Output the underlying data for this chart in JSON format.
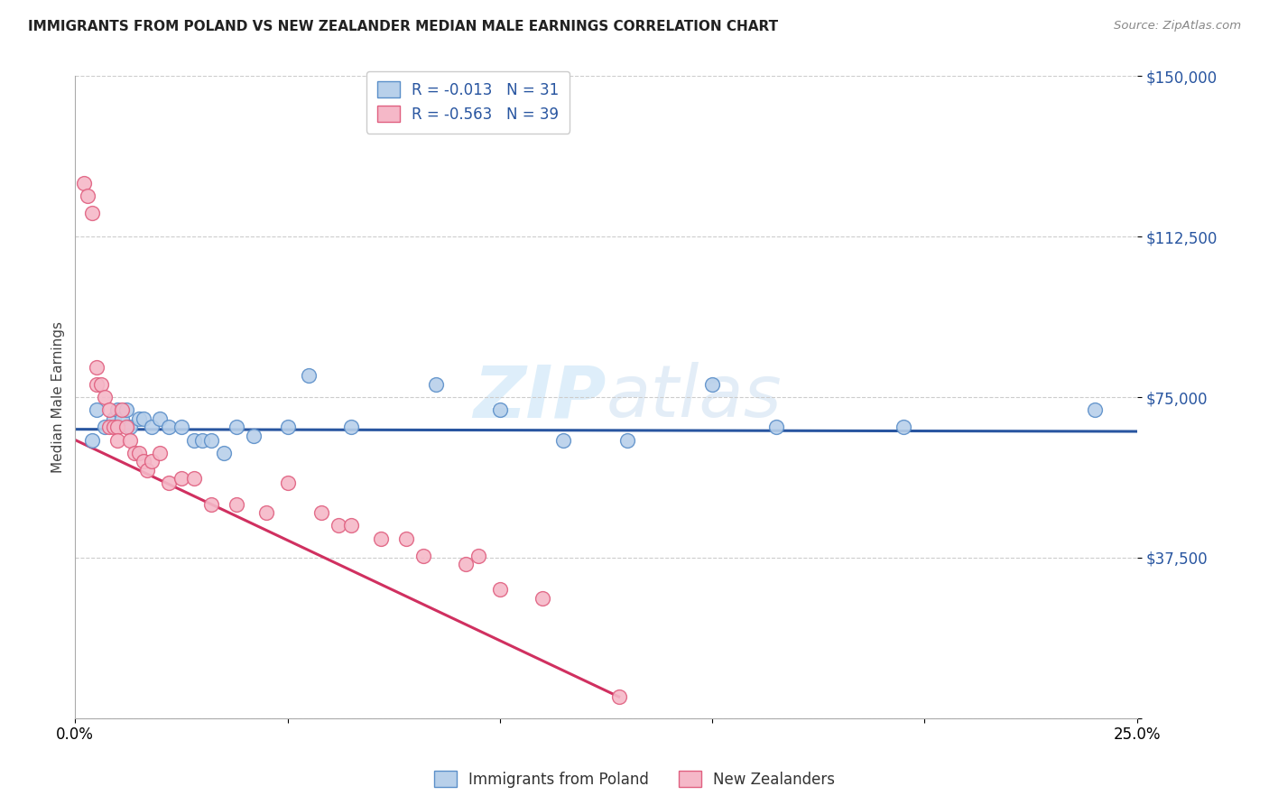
{
  "title": "IMMIGRANTS FROM POLAND VS NEW ZEALANDER MEDIAN MALE EARNINGS CORRELATION CHART",
  "source": "Source: ZipAtlas.com",
  "ylabel": "Median Male Earnings",
  "x_min": 0.0,
  "x_max": 0.25,
  "y_min": 0,
  "y_max": 150000,
  "y_ticks": [
    0,
    37500,
    75000,
    112500,
    150000
  ],
  "y_tick_labels": [
    "",
    "$37,500",
    "$75,000",
    "$112,500",
    "$150,000"
  ],
  "x_ticks": [
    0.0,
    0.05,
    0.1,
    0.15,
    0.2,
    0.25
  ],
  "x_tick_labels": [
    "0.0%",
    "",
    "",
    "",
    "",
    "25.0%"
  ],
  "legend_label1": "Immigrants from Poland",
  "legend_label2": "New Zealanders",
  "blue_color": "#b8d0ea",
  "pink_color": "#f5b8c8",
  "blue_edge_color": "#5b8fc9",
  "pink_edge_color": "#e06080",
  "blue_line_color": "#2855a0",
  "pink_line_color": "#d03060",
  "legend_text_color": "#2855a0",
  "watermark_color": "#d0e8f8",
  "blue_x": [
    0.004,
    0.005,
    0.007,
    0.009,
    0.01,
    0.011,
    0.012,
    0.013,
    0.015,
    0.016,
    0.018,
    0.02,
    0.022,
    0.025,
    0.028,
    0.03,
    0.032,
    0.035,
    0.038,
    0.042,
    0.05,
    0.055,
    0.065,
    0.085,
    0.1,
    0.115,
    0.13,
    0.15,
    0.165,
    0.195,
    0.24
  ],
  "blue_y": [
    65000,
    72000,
    68000,
    70000,
    72000,
    70000,
    72000,
    68000,
    70000,
    70000,
    68000,
    70000,
    68000,
    68000,
    65000,
    65000,
    65000,
    62000,
    68000,
    66000,
    68000,
    80000,
    68000,
    78000,
    72000,
    65000,
    65000,
    78000,
    68000,
    68000,
    72000
  ],
  "pink_x": [
    0.002,
    0.003,
    0.004,
    0.005,
    0.005,
    0.006,
    0.007,
    0.008,
    0.008,
    0.009,
    0.01,
    0.01,
    0.011,
    0.012,
    0.013,
    0.014,
    0.015,
    0.016,
    0.017,
    0.018,
    0.02,
    0.022,
    0.025,
    0.028,
    0.032,
    0.038,
    0.045,
    0.05,
    0.058,
    0.062,
    0.065,
    0.072,
    0.078,
    0.082,
    0.092,
    0.095,
    0.1,
    0.11,
    0.128
  ],
  "pink_y": [
    125000,
    122000,
    118000,
    82000,
    78000,
    78000,
    75000,
    72000,
    68000,
    68000,
    68000,
    65000,
    72000,
    68000,
    65000,
    62000,
    62000,
    60000,
    58000,
    60000,
    62000,
    55000,
    56000,
    56000,
    50000,
    50000,
    48000,
    55000,
    48000,
    45000,
    45000,
    42000,
    42000,
    38000,
    36000,
    38000,
    30000,
    28000,
    5000
  ],
  "blue_line_x0": 0.0,
  "blue_line_x1": 0.25,
  "blue_line_y0": 67500,
  "blue_line_y1": 67000,
  "pink_line_x0": 0.0,
  "pink_line_x1": 0.128,
  "pink_line_y0": 65000,
  "pink_line_y1": 5000
}
